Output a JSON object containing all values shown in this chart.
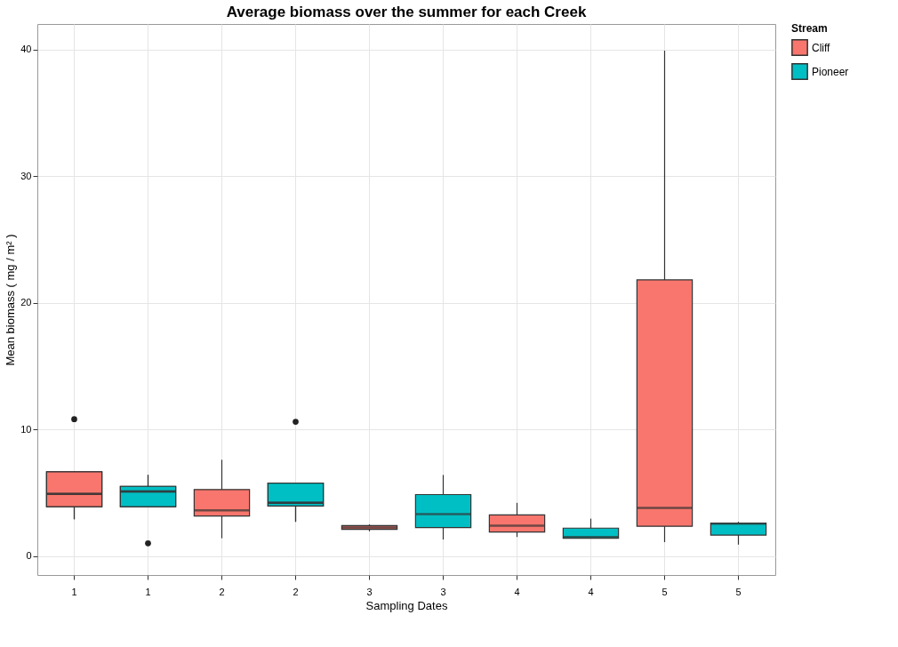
{
  "chart_data": {
    "type": "box",
    "title": "Average biomass over the summer for each Creek",
    "xlabel": "Sampling Dates",
    "ylabel": "Mean biomass ( mg / m² )",
    "legend_title": "Stream",
    "categories": [
      "1",
      "1",
      "2",
      "2",
      "3",
      "3",
      "4",
      "4",
      "5",
      "5"
    ],
    "series": [
      {
        "name": "Cliff",
        "color": "#f8766d",
        "boxes": [
          {
            "low": 2.9,
            "q1": 3.9,
            "median": 4.9,
            "q3": 6.65,
            "high": 6.65,
            "outliers": [
              10.8
            ]
          },
          null,
          {
            "low": 1.4,
            "q1": 3.15,
            "median": 3.6,
            "q3": 5.25,
            "high": 7.6
          },
          null,
          {
            "low": 1.95,
            "q1": 2.1,
            "median": 2.25,
            "q3": 2.4,
            "high": 2.5
          },
          null,
          {
            "low": 1.5,
            "q1": 1.9,
            "median": 2.4,
            "q3": 3.25,
            "high": 4.2
          },
          null,
          {
            "low": 1.1,
            "q1": 2.35,
            "median": 3.8,
            "q3": 21.8,
            "high": 39.9
          },
          null
        ]
      },
      {
        "name": "Pioneer",
        "color": "#00bfc4",
        "boxes": [
          null,
          {
            "low": 3.9,
            "q1": 3.9,
            "median": 5.1,
            "q3": 5.5,
            "high": 6.4,
            "outliers": [
              1.0
            ]
          },
          null,
          {
            "low": 2.7,
            "q1": 3.95,
            "median": 4.2,
            "q3": 5.75,
            "high": 5.75,
            "outliers": [
              10.6
            ]
          },
          null,
          {
            "low": 1.3,
            "q1": 2.25,
            "median": 3.3,
            "q3": 4.85,
            "high": 6.4
          },
          null,
          {
            "low": 1.4,
            "q1": 1.4,
            "median": 1.5,
            "q3": 2.2,
            "high": 2.95
          },
          null,
          {
            "low": 0.9,
            "q1": 1.65,
            "median": 2.55,
            "q3": 2.6,
            "high": 2.7
          }
        ]
      }
    ],
    "ylim": [
      -1.5,
      42
    ],
    "yticks": [
      0,
      10,
      20,
      30,
      40
    ],
    "grid": true,
    "legend": "right"
  }
}
